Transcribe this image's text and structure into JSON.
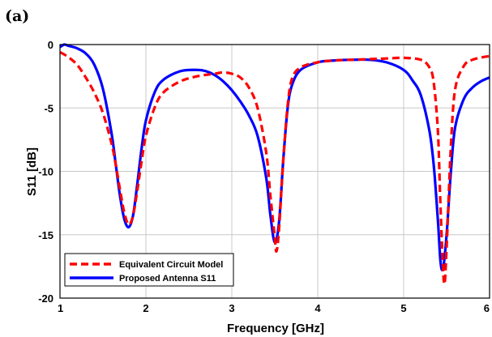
{
  "panel_label": "(a)",
  "chart_data": {
    "type": "line",
    "title": "",
    "xlabel": "Frequency [GHz]",
    "ylabel": "S11 [dB]",
    "xlim": [
      1,
      6
    ],
    "ylim": [
      -20,
      0
    ],
    "x_ticks": [
      1,
      2,
      3,
      4,
      5,
      6
    ],
    "x_tick_labels": [
      "1",
      "2",
      "3",
      "4",
      "5",
      "6"
    ],
    "y_ticks": [
      0,
      -5,
      -10,
      -15,
      -20
    ],
    "y_tick_labels": [
      "0",
      "-5",
      "-10",
      "-15",
      "-20"
    ],
    "grid": true,
    "legend_position": "bottom-left",
    "series": [
      {
        "name": "Equivalent Circuit Model",
        "color": "#ff0000",
        "style": "dashed",
        "x": [
          1.0,
          1.1,
          1.2,
          1.3,
          1.4,
          1.5,
          1.6,
          1.65,
          1.7,
          1.75,
          1.8,
          1.85,
          1.9,
          1.95,
          2.0,
          2.1,
          2.2,
          2.4,
          2.6,
          2.8,
          2.9,
          3.0,
          3.1,
          3.2,
          3.3,
          3.4,
          3.45,
          3.5,
          3.52,
          3.55,
          3.6,
          3.65,
          3.7,
          3.8,
          4.0,
          4.2,
          4.4,
          4.6,
          4.8,
          5.0,
          5.2,
          5.3,
          5.35,
          5.4,
          5.43,
          5.47,
          5.5,
          5.55,
          5.6,
          5.7,
          5.8,
          6.0
        ],
        "y": [
          -0.6,
          -1.0,
          -1.6,
          -2.6,
          -3.8,
          -5.4,
          -7.8,
          -9.5,
          -11.5,
          -13.3,
          -14.2,
          -13.5,
          -11.5,
          -9.2,
          -7.2,
          -5.0,
          -3.8,
          -2.9,
          -2.5,
          -2.3,
          -2.2,
          -2.3,
          -2.6,
          -3.4,
          -5.0,
          -8.5,
          -12.0,
          -15.2,
          -16.3,
          -14.5,
          -9.0,
          -4.8,
          -2.7,
          -1.8,
          -1.4,
          -1.25,
          -1.2,
          -1.15,
          -1.1,
          -1.05,
          -1.2,
          -1.8,
          -3.0,
          -7.0,
          -13.0,
          -18.8,
          -16.0,
          -8.0,
          -3.5,
          -1.7,
          -1.2,
          -0.9
        ]
      },
      {
        "name": "Proposed Antenna S11",
        "color": "#0000ff",
        "style": "solid",
        "x": [
          1.0,
          1.05,
          1.1,
          1.2,
          1.3,
          1.4,
          1.5,
          1.6,
          1.65,
          1.7,
          1.75,
          1.8,
          1.85,
          1.9,
          1.95,
          2.0,
          2.1,
          2.2,
          2.4,
          2.6,
          2.7,
          2.8,
          2.9,
          3.0,
          3.1,
          3.2,
          3.3,
          3.4,
          3.45,
          3.5,
          3.55,
          3.6,
          3.65,
          3.7,
          3.8,
          4.0,
          4.2,
          4.4,
          4.6,
          4.8,
          5.0,
          5.1,
          5.2,
          5.3,
          5.35,
          5.4,
          5.43,
          5.46,
          5.5,
          5.55,
          5.6,
          5.7,
          5.8,
          5.9,
          6.0
        ],
        "y": [
          -0.2,
          0.0,
          -0.1,
          -0.3,
          -0.7,
          -1.6,
          -3.5,
          -7.0,
          -9.5,
          -12.0,
          -13.8,
          -14.4,
          -13.5,
          -11.0,
          -8.2,
          -6.0,
          -3.8,
          -2.8,
          -2.1,
          -2.0,
          -2.1,
          -2.4,
          -2.9,
          -3.6,
          -4.5,
          -5.6,
          -7.2,
          -10.5,
          -13.5,
          -15.6,
          -14.0,
          -9.0,
          -5.0,
          -3.2,
          -2.0,
          -1.4,
          -1.25,
          -1.2,
          -1.2,
          -1.4,
          -2.0,
          -2.8,
          -4.0,
          -6.8,
          -9.5,
          -14.0,
          -17.2,
          -17.6,
          -15.0,
          -10.0,
          -6.5,
          -4.3,
          -3.4,
          -2.9,
          -2.6
        ]
      }
    ]
  }
}
